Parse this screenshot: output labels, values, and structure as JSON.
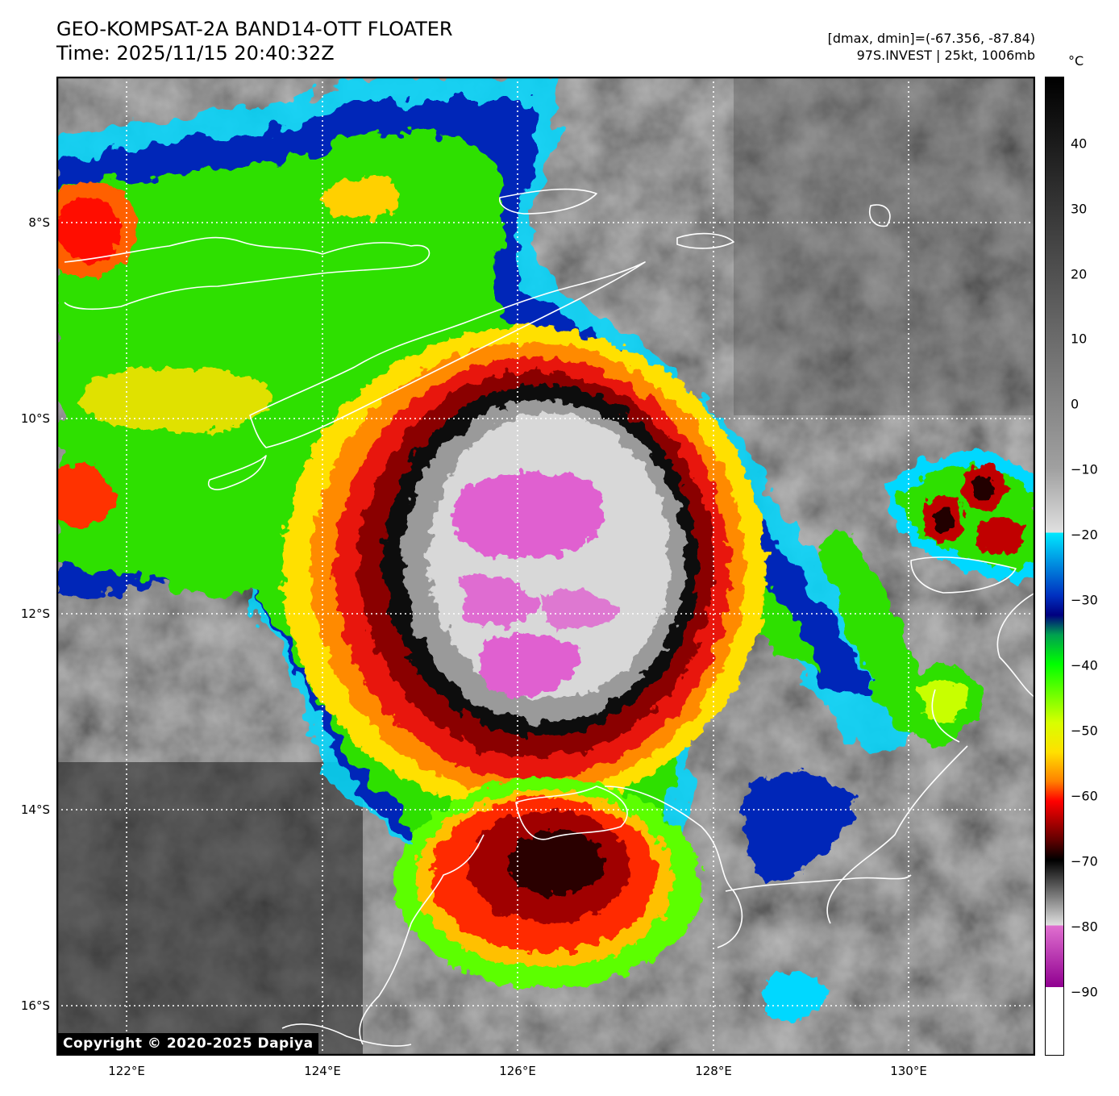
{
  "header": {
    "title_line1": "GEO-KOMPSAT-2A BAND14-OTT FLOATER",
    "title_line2": "Time: 2025/11/15 20:40:32Z",
    "stats_line": "[dmax, dmin]=(-67.356, -87.84)",
    "storm_line": "97S.INVEST | 25kt, 1006mb"
  },
  "axes": {
    "x_ticks": [
      "122°E",
      "124°E",
      "126°E",
      "128°E",
      "130°E"
    ],
    "y_ticks": [
      "8°S",
      "10°S",
      "12°S",
      "14°S",
      "16°S"
    ]
  },
  "colorbar": {
    "unit": "°C",
    "ticks": [
      "40",
      "30",
      "20",
      "10",
      "0",
      "−10",
      "−20",
      "−30",
      "−40",
      "−50",
      "−60",
      "−70",
      "−80",
      "−90"
    ],
    "range": [
      -100,
      50
    ]
  },
  "footer": {
    "copyright": "Copyright © 2020-2025 Dapiya"
  }
}
